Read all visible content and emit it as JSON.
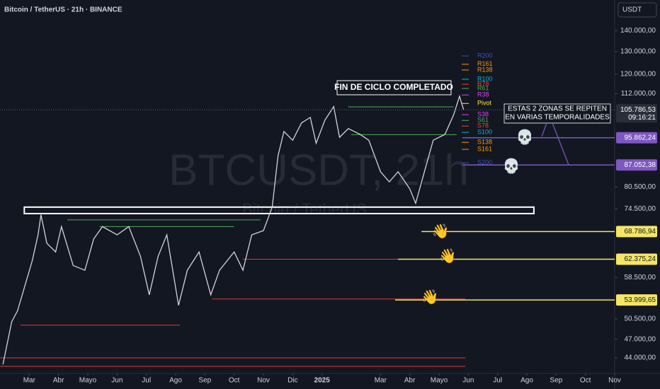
{
  "chart_data": {
    "type": "line",
    "title": "Bitcoin / TetherUS · 21h · BINANCE",
    "currency": "USDT",
    "watermark": "BTCUSDT, 21h",
    "watermark_sub": "Bitcoin / TetherUS",
    "log_scale": true,
    "xlim": [
      -1,
      20
    ],
    "ylim": [
      41650,
      156000
    ],
    "xticks": [
      {
        "value": 0,
        "label": "Mar"
      },
      {
        "value": 1,
        "label": "Abr"
      },
      {
        "value": 2,
        "label": "Mayo"
      },
      {
        "value": 3,
        "label": "Jun"
      },
      {
        "value": 4,
        "label": "Jul"
      },
      {
        "value": 5,
        "label": "Ago"
      },
      {
        "value": 6,
        "label": "Sep"
      },
      {
        "value": 7,
        "label": "Oct"
      },
      {
        "value": 8,
        "label": "Nov"
      },
      {
        "value": 9,
        "label": "Dic"
      },
      {
        "value": 10,
        "label": "2025"
      },
      {
        "value": 12,
        "label": "Mar"
      },
      {
        "value": 13,
        "label": "Abr"
      },
      {
        "value": 14,
        "label": "Mayo"
      },
      {
        "value": 15,
        "label": "Jun"
      },
      {
        "value": 16,
        "label": "Jul"
      },
      {
        "value": 17,
        "label": "Ago"
      },
      {
        "value": 18,
        "label": "Sep"
      },
      {
        "value": 19,
        "label": "Oct"
      },
      {
        "value": 20,
        "label": "Nov"
      }
    ],
    "yticks": [
      {
        "value": 140000,
        "label": "140.000,00"
      },
      {
        "value": 130000,
        "label": "130.000,00"
      },
      {
        "value": 120000,
        "label": "120.000,00"
      },
      {
        "value": 112000,
        "label": "112.000,00"
      },
      {
        "value": 80500,
        "label": "80.500,00"
      },
      {
        "value": 74500,
        "label": "74.500,00"
      },
      {
        "value": 58500,
        "label": "58.500,00"
      },
      {
        "value": 50500,
        "label": "50.500,00"
      },
      {
        "value": 47000,
        "label": "47.000,00"
      },
      {
        "value": 44000,
        "label": "44.000,00"
      }
    ],
    "series": [
      {
        "name": "BTCUSDT",
        "color": "#d1d4dc",
        "x": [
          -0.9,
          -0.6,
          -0.4,
          0.1,
          0.3,
          0.4,
          0.6,
          0.9,
          1.1,
          1.5,
          1.9,
          2.2,
          2.5,
          3.0,
          3.4,
          3.8,
          4.1,
          4.4,
          4.7,
          5.1,
          5.4,
          5.8,
          6.2,
          6.5,
          7.0,
          7.3,
          7.6,
          8.0,
          8.3,
          8.5,
          8.7,
          9.0,
          9.3,
          9.6,
          9.8,
          10.1,
          10.4,
          10.6,
          10.9,
          11.3,
          11.6,
          12.0,
          12.3,
          12.6,
          13.0,
          13.2,
          13.5,
          13.8,
          14.2,
          14.5,
          14.7,
          14.84
        ],
        "values": [
          43000,
          50000,
          52000,
          62000,
          68000,
          73000,
          66000,
          64000,
          70000,
          61000,
          60000,
          67000,
          70000,
          68000,
          70000,
          63000,
          55000,
          63000,
          68000,
          53000,
          60000,
          64000,
          55000,
          60000,
          64000,
          60000,
          68000,
          69000,
          75000,
          90000,
          98000,
          95000,
          101000,
          103000,
          94000,
          102000,
          107000,
          96000,
          99000,
          97000,
          95000,
          85000,
          82000,
          85000,
          80000,
          76000,
          85000,
          95000,
          97000,
          104000,
          111000,
          105786.53
        ]
      }
    ],
    "last_price": {
      "value": 105786.53,
      "label": "105.786,53",
      "countdown": "09:16:21"
    },
    "levels": [
      {
        "value": 95862.24,
        "label": "95.862,24",
        "color": "#7e57c2",
        "start": 14.8
      },
      {
        "value": 87052.38,
        "label": "87.052,38",
        "color": "#7e57c2",
        "start": 14.8
      },
      {
        "value": 68786.94,
        "label": "68.786,94",
        "color": "#f5e663",
        "start": 13.4
      },
      {
        "value": 62375.24,
        "label": "62.375,24",
        "color": "#f5e663",
        "start": 12.6
      },
      {
        "value": 53999.65,
        "label": "53.999,65",
        "color": "#f5e663",
        "start": 12.5
      }
    ],
    "segments": [
      {
        "value": 106900,
        "start": 10.9,
        "end": 14.5,
        "color": "#4caf50"
      },
      {
        "value": 96900,
        "start": 11.0,
        "end": 14.6,
        "color": "#4caf50"
      },
      {
        "value": 71700,
        "start": 1.3,
        "end": 7.9,
        "color": "#4caf50"
      },
      {
        "value": 70000,
        "start": 2.4,
        "end": 7.0,
        "color": "#4caf50"
      },
      {
        "value": 62375.24,
        "start": 7.3,
        "end": 14.9,
        "color": "#e53935"
      },
      {
        "value": 54200,
        "start": 6.25,
        "end": 14.9,
        "color": "#e53935"
      },
      {
        "value": 49400,
        "start": -0.3,
        "end": 5.15,
        "color": "#e53935"
      },
      {
        "value": 44000,
        "start": -1,
        "end": 14.9,
        "color": "#e53935"
      },
      {
        "value": 42700,
        "start": -1,
        "end": 14.9,
        "color": "#e53935"
      }
    ],
    "range_box": {
      "low": 73300,
      "high": 75000,
      "start": -0.17,
      "end": 17.24
    },
    "pivots": [
      {
        "name": "R200",
        "value": 128000,
        "color": "#3f51b5"
      },
      {
        "name": "R161",
        "value": 124300,
        "color": "#ff9800"
      },
      {
        "name": "R138",
        "value": 121800,
        "color": "#ff9800"
      },
      {
        "name": "R100",
        "value": 117900,
        "color": "#00bcd4"
      },
      {
        "name": "R78",
        "value": 115800,
        "color": "#f44336"
      },
      {
        "name": "R61",
        "value": 114100,
        "color": "#4caf50"
      },
      {
        "name": "R38",
        "value": 111500,
        "color": "#e040fb"
      },
      {
        "name": "Pivot",
        "value": 108200,
        "color": "#ffeb3b"
      },
      {
        "name": "S38",
        "value": 104000,
        "color": "#e040fb"
      },
      {
        "name": "S61",
        "value": 101900,
        "color": "#4caf50"
      },
      {
        "name": "S78",
        "value": 99900,
        "color": "#f44336"
      },
      {
        "name": "S100",
        "value": 97700,
        "color": "#00bcd4"
      },
      {
        "name": "S138",
        "value": 94300,
        "color": "#ff9800"
      },
      {
        "name": "S161",
        "value": 92000,
        "color": "#ff9800"
      },
      {
        "name": "S200",
        "value": 87700,
        "color": "#3f51b5"
      }
    ],
    "annotations": [
      "FIN DE CICLO COMPLETADO",
      "ESTAS 2 ZONAS SE REPITEN",
      "EN VARIAS TEMPORALIDADES"
    ],
    "icons": [
      "💀",
      "💀",
      "👋",
      "👋",
      "👋"
    ]
  }
}
